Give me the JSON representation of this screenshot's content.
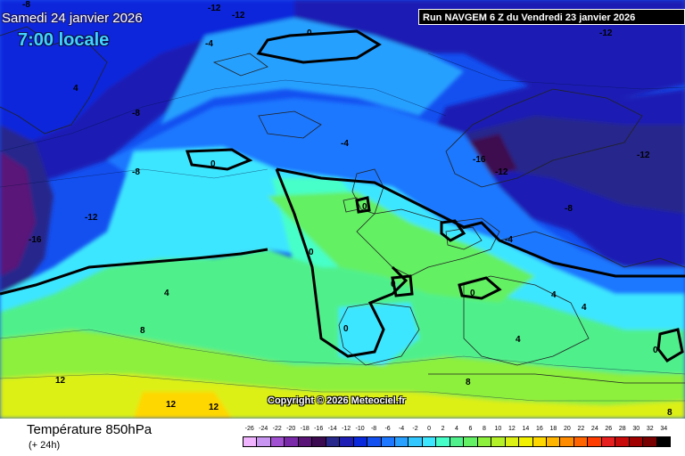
{
  "header": {
    "date_text": "Samedi 24 janvier 2026",
    "local_time": "7:00 locale",
    "run_text": "Run NAVGEM 6 Z du Vendredi 23 janvier 2026"
  },
  "map": {
    "copyright": "Copyright © 2026 Meteociel.fr",
    "contour_labels": [
      "-8",
      "-12",
      "-12",
      "-12",
      "-4",
      "0",
      "4",
      "-8",
      "-8",
      "-12",
      "-16",
      "-4",
      "-16",
      "-12",
      "-12",
      "0",
      "0",
      "0",
      "-8",
      "-4",
      "4",
      "8",
      "0",
      "0",
      "0",
      "4",
      "4",
      "4",
      "0",
      "8",
      "12",
      "12",
      "12",
      "8"
    ]
  },
  "legend": {
    "title": "Température 850hPa",
    "subtitle": "(+ 24h)",
    "scale_labels": [
      "-26",
      "-24",
      "-22",
      "-20",
      "-18",
      "-16",
      "-14",
      "-12",
      "-10",
      "-8",
      "-6",
      "-4",
      "-2",
      "0",
      "2",
      "4",
      "6",
      "8",
      "10",
      "12",
      "14",
      "16",
      "18",
      "20",
      "22",
      "24",
      "26",
      "28",
      "30",
      "32",
      "34"
    ],
    "scale_colors": [
      "#f0b4ff",
      "#c896f0",
      "#a050d0",
      "#7a2aa8",
      "#5a1478",
      "#3c0a50",
      "#28288c",
      "#1e1eb4",
      "#0a28dc",
      "#1450f0",
      "#1e78ff",
      "#28a0ff",
      "#32c8ff",
      "#3ce6ff",
      "#46ffc8",
      "#50f08c",
      "#64f064",
      "#8cf03c",
      "#b4f028",
      "#dcf014",
      "#f0f000",
      "#ffd700",
      "#ffb400",
      "#ff8c00",
      "#ff6400",
      "#ff3c00",
      "#e61e1e",
      "#c80a0a",
      "#a00000",
      "#780000",
      "#000000"
    ]
  }
}
